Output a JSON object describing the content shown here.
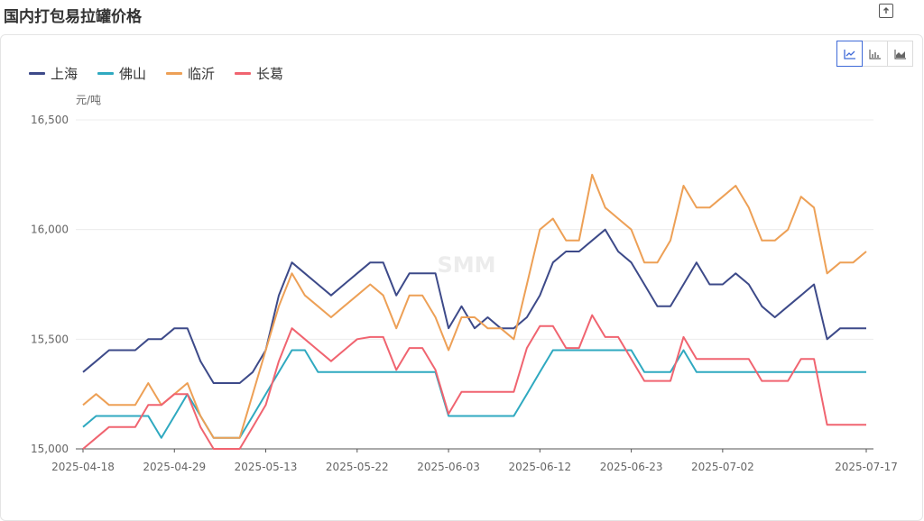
{
  "header": {
    "title": "国内打包易拉罐价格"
  },
  "watermark": "SMM",
  "chart_data": {
    "type": "line",
    "ylabel": "元/吨",
    "ylim": [
      15000,
      16500
    ],
    "yticks": [
      15000,
      15500,
      16000,
      16500
    ],
    "ytick_labels": [
      "15,000",
      "15,500",
      "16,000",
      "16,500"
    ],
    "x": [
      "2025-04-18",
      "2025-04-21",
      "2025-04-22",
      "2025-04-23",
      "2025-04-24",
      "2025-04-25",
      "2025-04-28",
      "2025-04-29",
      "2025-04-30",
      "2025-05-06",
      "2025-05-07",
      "2025-05-08",
      "2025-05-09",
      "2025-05-12",
      "2025-05-13",
      "2025-05-14",
      "2025-05-15",
      "2025-05-16",
      "2025-05-19",
      "2025-05-20",
      "2025-05-21",
      "2025-05-22",
      "2025-05-23",
      "2025-05-26",
      "2025-05-27",
      "2025-05-28",
      "2025-05-29",
      "2025-05-30",
      "2025-06-03",
      "2025-06-04",
      "2025-06-05",
      "2025-06-06",
      "2025-06-09",
      "2025-06-10",
      "2025-06-11",
      "2025-06-12",
      "2025-06-13",
      "2025-06-16",
      "2025-06-17",
      "2025-06-18",
      "2025-06-19",
      "2025-06-20",
      "2025-06-23",
      "2025-06-24",
      "2025-06-25",
      "2025-06-26",
      "2025-06-27",
      "2025-06-30",
      "2025-07-01",
      "2025-07-02",
      "2025-07-03",
      "2025-07-04",
      "2025-07-07",
      "2025-07-08",
      "2025-07-09",
      "2025-07-10",
      "2025-07-11",
      "2025-07-14",
      "2025-07-15",
      "2025-07-16",
      "2025-07-17"
    ],
    "xtick_labels": [
      {
        "index": 0,
        "label": "2025-04-18"
      },
      {
        "index": 7,
        "label": "2025-04-29"
      },
      {
        "index": 14,
        "label": "2025-05-13"
      },
      {
        "index": 21,
        "label": "2025-05-22"
      },
      {
        "index": 28,
        "label": "2025-06-03"
      },
      {
        "index": 35,
        "label": "2025-06-12"
      },
      {
        "index": 42,
        "label": "2025-06-23"
      },
      {
        "index": 49,
        "label": "2025-07-02"
      },
      {
        "index": 60,
        "label": "2025-07-17"
      }
    ],
    "legend_position": "top-left",
    "grid": true,
    "series": [
      {
        "name": "上海",
        "color": "#3d4a89",
        "values": [
          15350,
          15400,
          15450,
          15450,
          15450,
          15500,
          15500,
          15550,
          15550,
          15400,
          15300,
          15300,
          15300,
          15350,
          15450,
          15700,
          15850,
          15800,
          15750,
          15700,
          15750,
          15800,
          15850,
          15850,
          15700,
          15800,
          15800,
          15800,
          15550,
          15650,
          15550,
          15600,
          15550,
          15550,
          15600,
          15700,
          15850,
          15900,
          15900,
          15950,
          16000,
          15900,
          15850,
          15750,
          15650,
          15650,
          15750,
          15850,
          15750,
          15750,
          15800,
          15750,
          15650,
          15600,
          15650,
          15700,
          15750,
          15500,
          15550,
          15550,
          15550
        ]
      },
      {
        "name": "佛山",
        "color": "#2fa9c0",
        "values": [
          15100,
          15150,
          15150,
          15150,
          15150,
          15150,
          15050,
          15150,
          15250,
          15150,
          15050,
          15050,
          15050,
          15150,
          15250,
          15350,
          15450,
          15450,
          15350,
          15350,
          15350,
          15350,
          15350,
          15350,
          15350,
          15350,
          15350,
          15350,
          15150,
          15150,
          15150,
          15150,
          15150,
          15150,
          15250,
          15350,
          15450,
          15450,
          15450,
          15450,
          15450,
          15450,
          15450,
          15350,
          15350,
          15350,
          15450,
          15350,
          15350,
          15350,
          15350,
          15350,
          15350,
          15350,
          15350,
          15350,
          15350,
          15350,
          15350,
          15350,
          15350
        ]
      },
      {
        "name": "临沂",
        "color": "#eda056",
        "values": [
          15200,
          15250,
          15200,
          15200,
          15200,
          15300,
          15200,
          15250,
          15300,
          15150,
          15050,
          15050,
          15050,
          15250,
          15450,
          15650,
          15800,
          15700,
          15650,
          15600,
          15650,
          15700,
          15750,
          15700,
          15550,
          15700,
          15700,
          15600,
          15450,
          15600,
          15600,
          15550,
          15550,
          15500,
          15750,
          16000,
          16050,
          15950,
          15950,
          16250,
          16100,
          16050,
          16000,
          15850,
          15850,
          15950,
          16200,
          16100,
          16100,
          16150,
          16200,
          16100,
          15950,
          15950,
          16000,
          16150,
          16100,
          15800,
          15850,
          15850,
          15900
        ]
      },
      {
        "name": "长葛",
        "color": "#f06470",
        "values": [
          15000,
          15050,
          15100,
          15100,
          15100,
          15200,
          15200,
          15250,
          15250,
          15100,
          15000,
          15000,
          15000,
          15100,
          15200,
          15400,
          15550,
          15500,
          15450,
          15400,
          15450,
          15500,
          15510,
          15510,
          15360,
          15460,
          15460,
          15360,
          15160,
          15260,
          15260,
          15260,
          15260,
          15260,
          15460,
          15560,
          15560,
          15460,
          15460,
          15610,
          15510,
          15510,
          15410,
          15310,
          15310,
          15310,
          15510,
          15410,
          15410,
          15410,
          15410,
          15410,
          15310,
          15310,
          15310,
          15410,
          15410,
          15110,
          15110,
          15110,
          15110
        ]
      }
    ]
  }
}
